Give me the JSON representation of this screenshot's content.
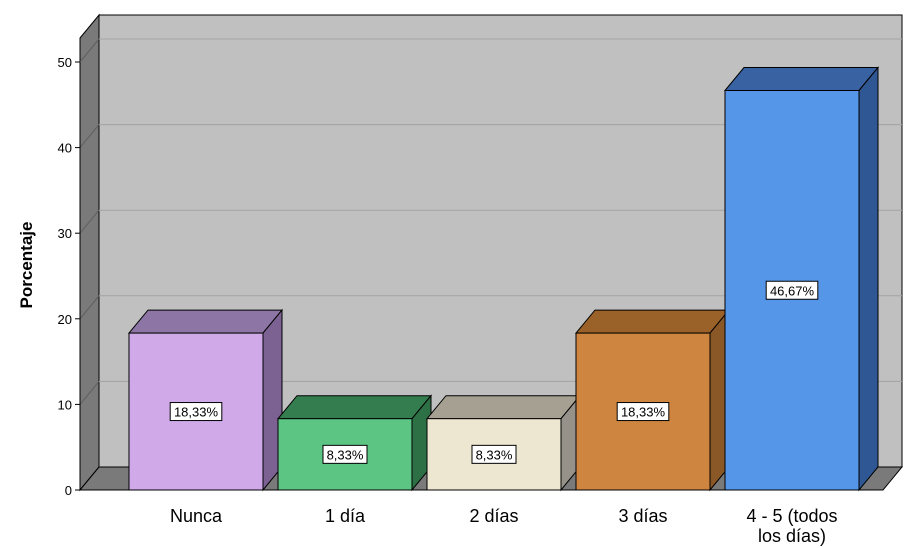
{
  "chart_data": {
    "type": "bar",
    "categories": [
      "Nunca",
      "1 día",
      "2 días",
      "3 días",
      "4 - 5 (todos los días)"
    ],
    "values": [
      18.33,
      8.33,
      8.33,
      18.33,
      46.67
    ],
    "labels": [
      "18,33%",
      "8,33%",
      "8,33%",
      "18,33%",
      "46,67%"
    ],
    "category_lines": [
      [
        "Nunca"
      ],
      [
        "1 día"
      ],
      [
        "2 días"
      ],
      [
        "3 días"
      ],
      [
        "4 - 5 (todos",
        "los días)"
      ]
    ],
    "colors": [
      "#D0A9E8",
      "#5CC584",
      "#EDE6D1",
      "#CD853F",
      "#5696E8"
    ],
    "side_colors": [
      "#7B6293",
      "#2E7045",
      "#96928A",
      "#8A5726",
      "#2F5793"
    ],
    "top_colors": [
      "#8D76A6",
      "#347D4E",
      "#A5A091",
      "#9A6229",
      "#3862A1"
    ],
    "ylabel": "Porcentaje",
    "xlabel": "",
    "ylim": [
      0,
      50
    ],
    "yticks": [
      0,
      10,
      20,
      30,
      40,
      50
    ],
    "grid": true,
    "plot_bg": "#C0C0C0",
    "wall_color": "#7A7A7A"
  }
}
